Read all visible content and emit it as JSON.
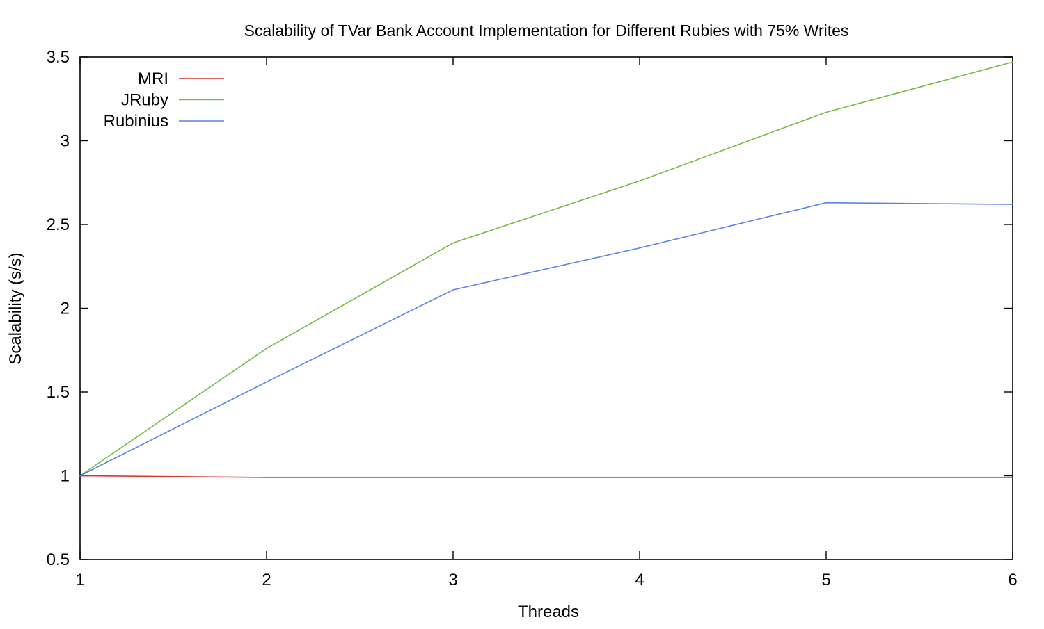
{
  "chart_data": {
    "type": "line",
    "title": "Scalability of TVar Bank Account Implementation for Different Rubies with 75% Writes",
    "xlabel": "Threads",
    "ylabel": "Scalability (s/s)",
    "x": [
      1,
      2,
      3,
      4,
      5,
      6
    ],
    "series": [
      {
        "name": "MRI",
        "color": "#d5342c",
        "values": [
          1.0,
          0.99,
          0.99,
          0.99,
          0.99,
          0.99
        ]
      },
      {
        "name": "JRuby",
        "color": "#74bb43",
        "values": [
          1.0,
          1.76,
          2.39,
          2.76,
          3.17,
          3.47
        ]
      },
      {
        "name": "Rubinius",
        "color": "#5b82e6",
        "values": [
          1.0,
          1.56,
          2.11,
          2.36,
          2.63,
          2.62
        ]
      }
    ],
    "xlim": [
      1,
      6
    ],
    "ylim": [
      0.5,
      3.5
    ],
    "x_ticks": [
      1,
      2,
      3,
      4,
      5,
      6
    ],
    "y_ticks": [
      0.5,
      1,
      1.5,
      2,
      2.5,
      3,
      3.5
    ],
    "grid": false,
    "legend_position": "top-left",
    "background": "#ffffff",
    "border_color": "#000000",
    "text_color": "#000000"
  }
}
